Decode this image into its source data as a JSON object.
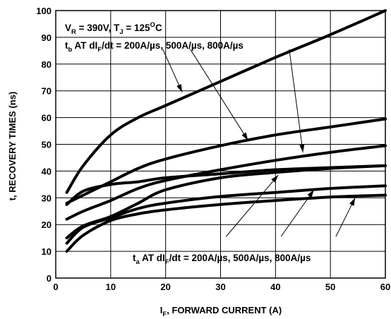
{
  "chart_data": {
    "type": "line",
    "xlabel": {
      "main": "I",
      "sub": "F",
      "rest": ", FORWARD CURRENT (A)"
    },
    "ylabel": "t, RECOVERY TIMES (ns)",
    "xlim": [
      0,
      60
    ],
    "ylim": [
      0,
      100
    ],
    "xticks": [
      0,
      10,
      20,
      30,
      40,
      50,
      60
    ],
    "yticks": [
      0,
      10,
      20,
      30,
      40,
      50,
      60,
      70,
      80,
      90,
      100
    ],
    "grid": true,
    "conditions": {
      "p1": "V",
      "s1": "R",
      "p2": " = 390V, T",
      "s2": "J",
      "p3": " = 125",
      "sup": "O",
      "p4": "C"
    },
    "tb_label": {
      "p1": "t",
      "s1": "b",
      "p2": " AT dI",
      "s2": "F",
      "p3": "/dt = 200A/µs, 500A/µs, 800A/µs"
    },
    "ta_label": {
      "p1": "t",
      "s1": "a",
      "p2": " AT dI",
      "s2": "F",
      "p3": "/dt = 200A/µs, 500A/µs, 800A/µs"
    },
    "series": [
      {
        "group": "tb",
        "x": [
          2,
          5,
          10,
          15,
          20,
          30,
          40,
          50,
          60
        ],
        "values": [
          32,
          42,
          53.5,
          60,
          64.5,
          73.5,
          82.5,
          91,
          100
        ]
      },
      {
        "group": "tb",
        "x": [
          2,
          5,
          10,
          15,
          20,
          30,
          40,
          50,
          60
        ],
        "values": [
          28,
          31,
          36,
          41,
          44.5,
          49.5,
          53.5,
          56.5,
          59.5
        ]
      },
      {
        "group": "tb",
        "x": [
          2,
          5,
          10,
          15,
          20,
          30,
          40,
          50,
          60
        ],
        "values": [
          22,
          25,
          29,
          33.5,
          36.5,
          40.5,
          44,
          47,
          49.5
        ]
      },
      {
        "group": "ta",
        "x": [
          2,
          5,
          10,
          15,
          20,
          30,
          40,
          50,
          60
        ],
        "values": [
          15,
          19.5,
          23,
          28,
          33,
          37.5,
          39.5,
          41,
          42
        ]
      },
      {
        "group": "ta",
        "x": [
          2,
          5,
          10,
          15,
          20,
          30,
          40,
          50,
          60
        ],
        "values": [
          13,
          19,
          22.5,
          26,
          28,
          30.5,
          32,
          33.5,
          34.5
        ]
      },
      {
        "group": "ta",
        "x": [
          2,
          5,
          10,
          15,
          20,
          30,
          40,
          50,
          60
        ],
        "values": [
          10,
          16,
          21.5,
          24,
          25.5,
          27.5,
          29,
          30.3,
          31
        ]
      },
      {
        "group": "extra",
        "x": [
          2,
          5,
          10,
          15,
          20,
          30,
          40,
          50,
          60
        ],
        "values": [
          27.5,
          32.5,
          35,
          36,
          37.5,
          39,
          40.5,
          41.3,
          42
        ]
      }
    ]
  }
}
